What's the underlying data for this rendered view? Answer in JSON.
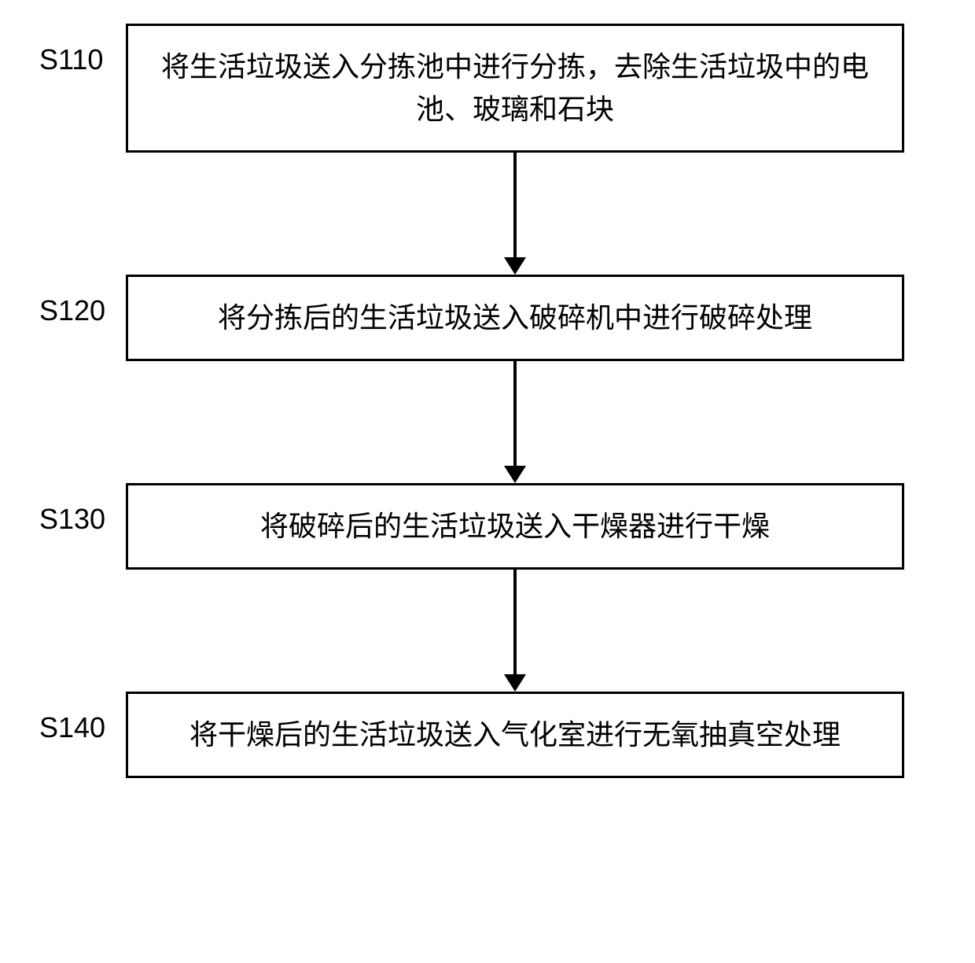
{
  "flowchart": {
    "type": "flowchart",
    "direction": "vertical",
    "background_color": "#ffffff",
    "box_border_color": "#000000",
    "box_border_width": 3,
    "arrow_color": "#000000",
    "arrow_line_width": 4,
    "text_color": "#000000",
    "font_size": 36,
    "label_font_size": 36,
    "steps": [
      {
        "id": "S110",
        "label": "S110",
        "text": "将生活垃圾送入分拣池中进行分拣，去除生活垃圾中的电池、玻璃和石块",
        "box_height": "tall"
      },
      {
        "id": "S120",
        "label": "S120",
        "text": "将分拣后的生活垃圾送入破碎机中进行破碎处理",
        "box_height": "normal"
      },
      {
        "id": "S130",
        "label": "S130",
        "text": "将破碎后的生活垃圾送入干燥器进行干燥",
        "box_height": "normal"
      },
      {
        "id": "S140",
        "label": "S140",
        "text": "将干燥后的生活垃圾送入气化室进行无氧抽真空处理",
        "box_height": "normal"
      }
    ],
    "edges": [
      {
        "from": "S110",
        "to": "S120"
      },
      {
        "from": "S120",
        "to": "S130"
      },
      {
        "from": "S130",
        "to": "S140"
      }
    ]
  }
}
